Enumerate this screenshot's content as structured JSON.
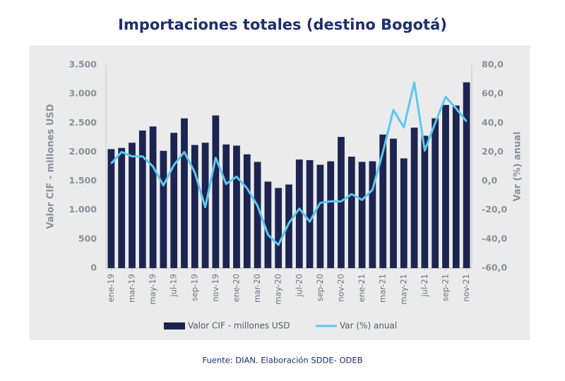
{
  "chart_data": {
    "type": "bar-line",
    "title": "Importaciones totales (destino Bogotá)",
    "ylabel": "Valor CIF - millones USD",
    "y2label": "Var (%) anual",
    "source": "Fuente: DIAN. Elaboración SDDE- ODEB",
    "categories": [
      "ene-19",
      null,
      "mar-19",
      null,
      "may-19",
      null,
      "jul-19",
      null,
      "sep-19",
      null,
      "nov-19",
      null,
      "ene-20",
      null,
      "mar-20",
      null,
      "may-20",
      null,
      "jul-20",
      null,
      "sep-20",
      null,
      "nov-20",
      null,
      "ene-21",
      null,
      "mar-21",
      null,
      "may-21",
      null,
      "jul-21",
      null,
      "sep-21",
      null,
      "nov-21"
    ],
    "series": [
      {
        "name": "Valor CIF - millones USD",
        "color": "#1c2450",
        "type": "bar",
        "values": [
          2050,
          2070,
          2160,
          2370,
          2440,
          2020,
          2330,
          2580,
          2120,
          2160,
          2630,
          2130,
          2110,
          1960,
          1830,
          1490,
          1380,
          1440,
          1870,
          1860,
          1780,
          1840,
          2260,
          1920,
          1830,
          1840,
          2300,
          2230,
          1890,
          2420,
          2280,
          2580,
          2810,
          2800,
          3200
        ]
      },
      {
        "name": "Var (%) anual",
        "color": "#5bc8f0",
        "type": "line",
        "axis": "y2",
        "values": [
          12,
          20,
          17,
          17,
          10,
          -3,
          11,
          20,
          6,
          -18,
          16,
          -2,
          3,
          -5,
          -17,
          -37,
          -44,
          -29,
          -19,
          -28,
          -15,
          -14,
          -14,
          -9,
          -13,
          -6,
          20,
          49,
          37,
          68,
          21,
          40,
          58,
          50,
          41
        ]
      }
    ],
    "ylim": [
      0,
      3500
    ],
    "yticks": [
      0,
      500,
      {
        "value": 1000,
        "label": "1.000"
      },
      {
        "value": 1500,
        "label": "1.500"
      },
      {
        "value": 2000,
        "label": "2.000"
      },
      {
        "value": 2500,
        "label": "2.500"
      },
      {
        "value": 3000,
        "label": "3.000"
      },
      {
        "value": 3500,
        "label": "3.500"
      }
    ],
    "y2lim": [
      -60,
      80
    ],
    "y2ticks": [
      {
        "value": -60,
        "label": "-60,0"
      },
      {
        "value": -40,
        "label": "-40,0"
      },
      {
        "value": -20,
        "label": "-20,0"
      },
      {
        "value": 0,
        "label": "0,0"
      },
      {
        "value": 20,
        "label": "20,0"
      },
      {
        "value": 40,
        "label": "40,0"
      },
      {
        "value": 60,
        "label": "60,0"
      },
      {
        "value": 80,
        "label": "80,0"
      }
    ],
    "grid": false,
    "legend": "bottom"
  }
}
